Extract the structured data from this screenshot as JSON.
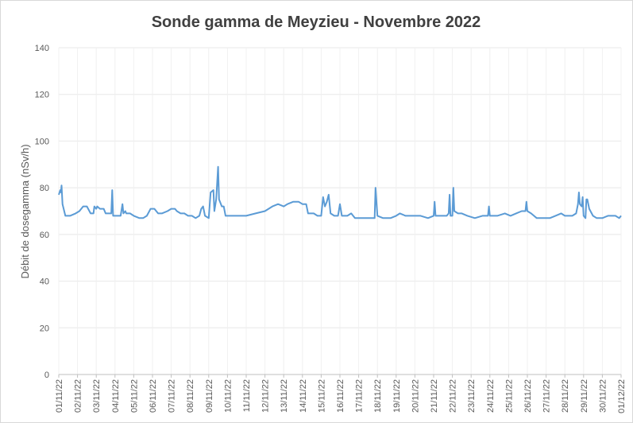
{
  "chart_data": {
    "type": "line",
    "title": "Sonde gamma de Meyzieu - Novembre 2022",
    "y_label": "Débit de dosegamma (nSv/h)",
    "x": [
      0,
      0.08,
      0.12,
      0.15,
      0.2,
      0.35,
      0.6,
      0.9,
      1.1,
      1.3,
      1.5,
      1.7,
      1.85,
      1.9,
      2.0,
      2.05,
      2.2,
      2.4,
      2.5,
      2.8,
      2.85,
      2.9,
      3.1,
      3.3,
      3.4,
      3.45,
      3.55,
      3.6,
      3.8,
      4.0,
      4.3,
      4.5,
      4.7,
      4.9,
      5.1,
      5.3,
      5.5,
      5.8,
      6.0,
      6.2,
      6.3,
      6.5,
      6.7,
      6.9,
      7.1,
      7.3,
      7.5,
      7.6,
      7.7,
      7.8,
      8.0,
      8.1,
      8.25,
      8.3,
      8.4,
      8.45,
      8.5,
      8.55,
      8.7,
      8.8,
      8.9,
      9.2,
      9.6,
      10.0,
      10.5,
      11.0,
      11.4,
      11.7,
      12.0,
      12.2,
      12.5,
      12.8,
      13.0,
      13.2,
      13.3,
      13.6,
      13.8,
      14.0,
      14.1,
      14.2,
      14.3,
      14.4,
      14.5,
      14.7,
      14.9,
      15.0,
      15.1,
      15.4,
      15.6,
      15.8,
      16.2,
      16.6,
      16.85,
      16.9,
      17.0,
      17.3,
      17.7,
      18.0,
      18.2,
      18.5,
      18.9,
      19.3,
      19.7,
      20.0,
      20.05,
      20.1,
      20.4,
      20.7,
      20.8,
      20.85,
      20.9,
      21.0,
      21.05,
      21.1,
      21.3,
      21.5,
      21.8,
      22.2,
      22.6,
      22.9,
      22.95,
      23.0,
      23.4,
      23.8,
      24.1,
      24.4,
      24.7,
      24.9,
      24.95,
      25.0,
      25.2,
      25.5,
      25.8,
      26.2,
      26.5,
      26.8,
      27.0,
      27.4,
      27.6,
      27.7,
      27.75,
      27.8,
      27.9,
      27.95,
      28.0,
      28.1,
      28.15,
      28.2,
      28.3,
      28.5,
      28.7,
      29.0,
      29.3,
      29.7,
      29.9,
      30.0
    ],
    "series": [
      {
        "name": "Débit de dose",
        "color": "#5b9bd5",
        "values": [
          77,
          79,
          78,
          81,
          73,
          68,
          68,
          69,
          70,
          72,
          72,
          69,
          69,
          72,
          71,
          72,
          71,
          71,
          69,
          69,
          79,
          68,
          68,
          68,
          73,
          69,
          70,
          69,
          69,
          68,
          67,
          67,
          68,
          71,
          71,
          69,
          69,
          70,
          71,
          71,
          70,
          69,
          69,
          68,
          68,
          67,
          68,
          71,
          72,
          68,
          67,
          78,
          79,
          70,
          75,
          82,
          89,
          75,
          72,
          72,
          68,
          68,
          68,
          68,
          69,
          70,
          72,
          73,
          72,
          73,
          74,
          74,
          73,
          73,
          69,
          69,
          68,
          68,
          76,
          72,
          74,
          77,
          69,
          68,
          68,
          73,
          68,
          68,
          69,
          67,
          67,
          67,
          67,
          80,
          68,
          67,
          67,
          68,
          69,
          68,
          68,
          68,
          67,
          68,
          74,
          68,
          68,
          68,
          69,
          77,
          68,
          68,
          80,
          70,
          69,
          69,
          68,
          67,
          68,
          68,
          72,
          68,
          68,
          69,
          68,
          69,
          70,
          70,
          74,
          70,
          69,
          67,
          67,
          67,
          68,
          69,
          68,
          68,
          69,
          73,
          78,
          73,
          72,
          76,
          68,
          67,
          75,
          75,
          71,
          68,
          67,
          67,
          68,
          68,
          67,
          68
        ]
      }
    ],
    "xlim": [
      0,
      30
    ],
    "xticks": [
      {
        "value": 0,
        "label": "01/11/22"
      },
      {
        "value": 1,
        "label": "02/11/22"
      },
      {
        "value": 2,
        "label": "03/11/22"
      },
      {
        "value": 3,
        "label": "04/11/22"
      },
      {
        "value": 4,
        "label": "05/11/22"
      },
      {
        "value": 5,
        "label": "06/11/22"
      },
      {
        "value": 6,
        "label": "07/11/22"
      },
      {
        "value": 7,
        "label": "08/11/22"
      },
      {
        "value": 8,
        "label": "09/11/22"
      },
      {
        "value": 9,
        "label": "10/11/22"
      },
      {
        "value": 10,
        "label": "11/11/22"
      },
      {
        "value": 11,
        "label": "12/11/22"
      },
      {
        "value": 12,
        "label": "13/11/22"
      },
      {
        "value": 13,
        "label": "14/11/22"
      },
      {
        "value": 14,
        "label": "15/11/22"
      },
      {
        "value": 15,
        "label": "16/11/22"
      },
      {
        "value": 16,
        "label": "17/11/22"
      },
      {
        "value": 17,
        "label": "18/11/22"
      },
      {
        "value": 18,
        "label": "19/11/22"
      },
      {
        "value": 19,
        "label": "20/11/22"
      },
      {
        "value": 20,
        "label": "21/11/22"
      },
      {
        "value": 21,
        "label": "22/11/22"
      },
      {
        "value": 22,
        "label": "23/11/22"
      },
      {
        "value": 23,
        "label": "24/11/22"
      },
      {
        "value": 24,
        "label": "25/11/22"
      },
      {
        "value": 25,
        "label": "26/11/22"
      },
      {
        "value": 26,
        "label": "27/11/22"
      },
      {
        "value": 27,
        "label": "28/11/22"
      },
      {
        "value": 28,
        "label": "29/11/22"
      },
      {
        "value": 29,
        "label": "30/11/22"
      },
      {
        "value": 30,
        "label": "01/12/22"
      }
    ],
    "ylim": [
      0,
      140
    ],
    "yticks": [
      0,
      20,
      40,
      60,
      80,
      100,
      120,
      140
    ],
    "grid": true
  }
}
